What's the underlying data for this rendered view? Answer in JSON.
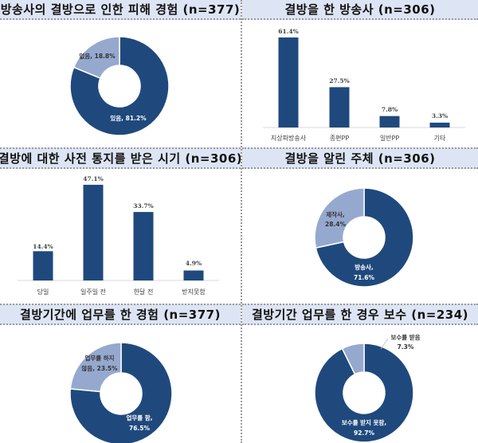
{
  "colors": {
    "title_bg": "#dde5f5",
    "dark_blue": "#1f497d",
    "light_blue": "#95a9cf",
    "grid_line": "#d9d9d9",
    "divider": "#9a9a9a"
  },
  "panels": {
    "p1": {
      "title": "방송사의 결방으로 인한 피해 경험 (n=377)"
    },
    "p2": {
      "title": "결방을 한 방송사 (n=306)"
    },
    "p3": {
      "title": "결방에 대한 사전 통지를 받은 시기 (n=306)"
    },
    "p4": {
      "title": "결방을 알린 주체 (n=306)"
    },
    "p5": {
      "title": "결방기간에 업무를 한 경험 (n=377)"
    },
    "p6": {
      "title": "결방기간 업무를 한 경우 보수 (n=234)"
    }
  },
  "labels": {
    "p1": {
      "yes": "있음, 81.2%",
      "no": "없음, 18.8%"
    },
    "p2": {
      "v": [
        "61.4%",
        "27.5%",
        "7.8%",
        "3.3%"
      ],
      "c": [
        "지상파방송사",
        "종편PP",
        "일반PP",
        "기타"
      ]
    },
    "p3": {
      "v": [
        "14.4%",
        "47.1%",
        "33.7%",
        "4.9%"
      ],
      "c": [
        "당일",
        "일주일 전",
        "한달 전",
        "받지못함"
      ]
    },
    "p4": {
      "a1": "방송사,",
      "a2": "71.6%",
      "b1": "제작사,",
      "b2": "28.4%"
    },
    "p5": {
      "a1": "업무를 함,",
      "a2": "76.5%",
      "b1": "업무를 하지",
      "b2": "않음, 23.5%"
    },
    "p6": {
      "a1": "보수를 받지 못함,",
      "a2": "92.7%",
      "b1": "보수를 받음",
      "b2": "7.3%"
    }
  },
  "chart_data": [
    {
      "type": "pie",
      "variant": "donut",
      "title": "방송사의 결방으로 인한 피해 경험 (n=377)",
      "categories": [
        "있음",
        "없음"
      ],
      "values": [
        81.2,
        18.8
      ],
      "unit": "%"
    },
    {
      "type": "bar",
      "title": "결방을 한 방송사 (n=306)",
      "categories": [
        "지상파방송사",
        "종편PP",
        "일반PP",
        "기타"
      ],
      "values": [
        61.4,
        27.5,
        7.8,
        3.3
      ],
      "unit": "%",
      "grid": false
    },
    {
      "type": "bar",
      "title": "결방에 대한 사전 통지를 받은 시기 (n=306)",
      "categories": [
        "당일",
        "일주일 전",
        "한달 전",
        "받지못함"
      ],
      "values": [
        14.4,
        47.1,
        33.7,
        4.9
      ],
      "unit": "%",
      "grid": false
    },
    {
      "type": "pie",
      "variant": "donut",
      "title": "결방을 알린 주체 (n=306)",
      "categories": [
        "방송사",
        "제작사"
      ],
      "values": [
        71.6,
        28.4
      ],
      "unit": "%"
    },
    {
      "type": "pie",
      "variant": "donut",
      "title": "결방기간에 업무를 한 경험 (n=377)",
      "categories": [
        "업무를 함",
        "업무를 하지 않음"
      ],
      "values": [
        76.5,
        23.5
      ],
      "unit": "%"
    },
    {
      "type": "pie",
      "variant": "donut",
      "title": "결방기간 업무를 한 경우 보수 (n=234)",
      "categories": [
        "보수를 받지 못함",
        "보수를 받음"
      ],
      "values": [
        92.7,
        7.3
      ],
      "unit": "%"
    }
  ]
}
